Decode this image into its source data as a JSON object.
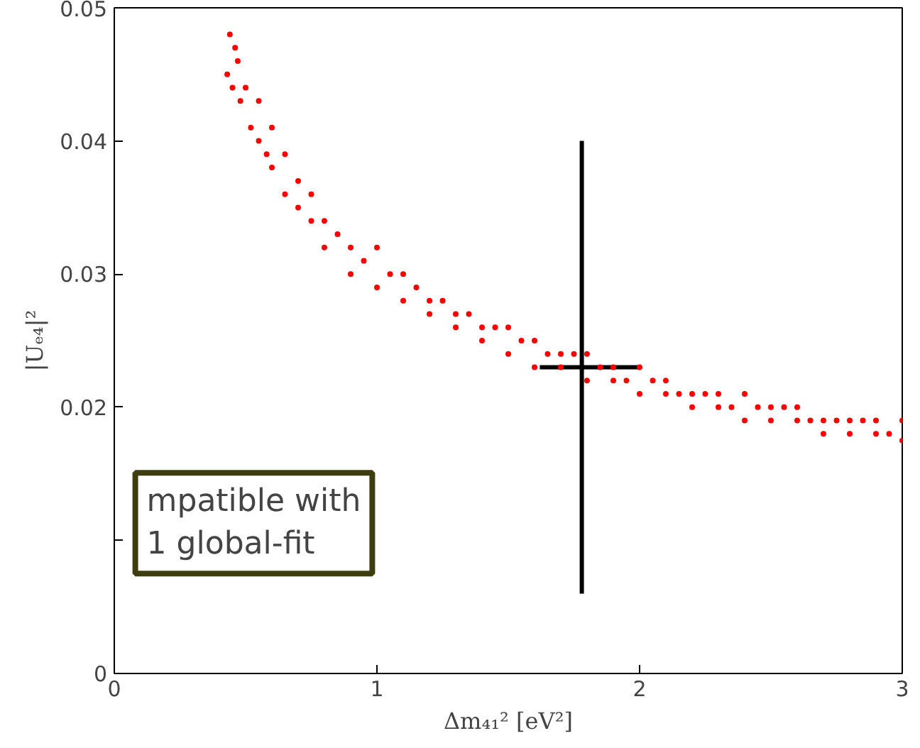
{
  "chart_data": {
    "type": "scatter",
    "xlabel": "Δm₄₁² [eV²]",
    "ylabel": "|Uₑ₄|²",
    "xlim": [
      0,
      3
    ],
    "ylim": [
      0,
      0.05
    ],
    "xticks": [
      0,
      1,
      2,
      3
    ],
    "yticks": [
      0,
      {
        "value": 0.01,
        "label": null
      },
      0.02,
      0.03,
      0.04,
      0.05
    ],
    "grid": false,
    "annotations": [
      "mpatible with\n1 global-fit"
    ],
    "series": [
      {
        "color": "#ff0000",
        "x": [
          0.43,
          0.44,
          0.45,
          0.46,
          0.47,
          0.48,
          0.5,
          0.52,
          0.55,
          0.55,
          0.58,
          0.6,
          0.6,
          0.65,
          0.65,
          0.7,
          0.7,
          0.75,
          0.75,
          0.8,
          0.8,
          0.85,
          0.9,
          0.9,
          0.95,
          1.0,
          1.0,
          1.05,
          1.1,
          1.1,
          1.15,
          1.2,
          1.2,
          1.25,
          1.3,
          1.3,
          1.35,
          1.4,
          1.4,
          1.45,
          1.5,
          1.5,
          1.55,
          1.6,
          1.6,
          1.65,
          1.7,
          1.7,
          1.75,
          1.8,
          1.8,
          1.85,
          1.9,
          1.9,
          1.95,
          2.0,
          2.0,
          2.05,
          2.1,
          2.1,
          2.15,
          2.2,
          2.2,
          2.25,
          2.3,
          2.3,
          2.35,
          2.4,
          2.4,
          2.45,
          2.5,
          2.5,
          2.55,
          2.6,
          2.6,
          2.65,
          2.7,
          2.7,
          2.75,
          2.8,
          2.8,
          2.85,
          2.9,
          2.9,
          2.95,
          3.0,
          3.0
        ],
        "values": [
          0.045,
          0.048,
          0.044,
          0.047,
          0.046,
          0.043,
          0.044,
          0.041,
          0.043,
          0.04,
          0.039,
          0.041,
          0.038,
          0.039,
          0.036,
          0.037,
          0.035,
          0.036,
          0.034,
          0.034,
          0.032,
          0.033,
          0.032,
          0.03,
          0.031,
          0.032,
          0.029,
          0.03,
          0.03,
          0.028,
          0.029,
          0.028,
          0.027,
          0.028,
          0.027,
          0.026,
          0.027,
          0.026,
          0.025,
          0.026,
          0.026,
          0.024,
          0.025,
          0.025,
          0.023,
          0.024,
          0.024,
          0.023,
          0.024,
          0.024,
          0.022,
          0.023,
          0.023,
          0.022,
          0.022,
          0.023,
          0.021,
          0.022,
          0.022,
          0.021,
          0.021,
          0.021,
          0.02,
          0.021,
          0.021,
          0.02,
          0.02,
          0.021,
          0.019,
          0.02,
          0.02,
          0.019,
          0.02,
          0.02,
          0.019,
          0.019,
          0.019,
          0.018,
          0.019,
          0.019,
          0.018,
          0.019,
          0.019,
          0.018,
          0.018,
          0.019,
          0.0175
        ]
      },
      {
        "color": "#000000",
        "x": [
          1.78
        ],
        "values": [
          0.023
        ],
        "errors": [
          [
            0.006,
            0.04
          ]
        ],
        "xerrors": [
          [
            1.62,
            2.0
          ]
        ]
      }
    ]
  }
}
